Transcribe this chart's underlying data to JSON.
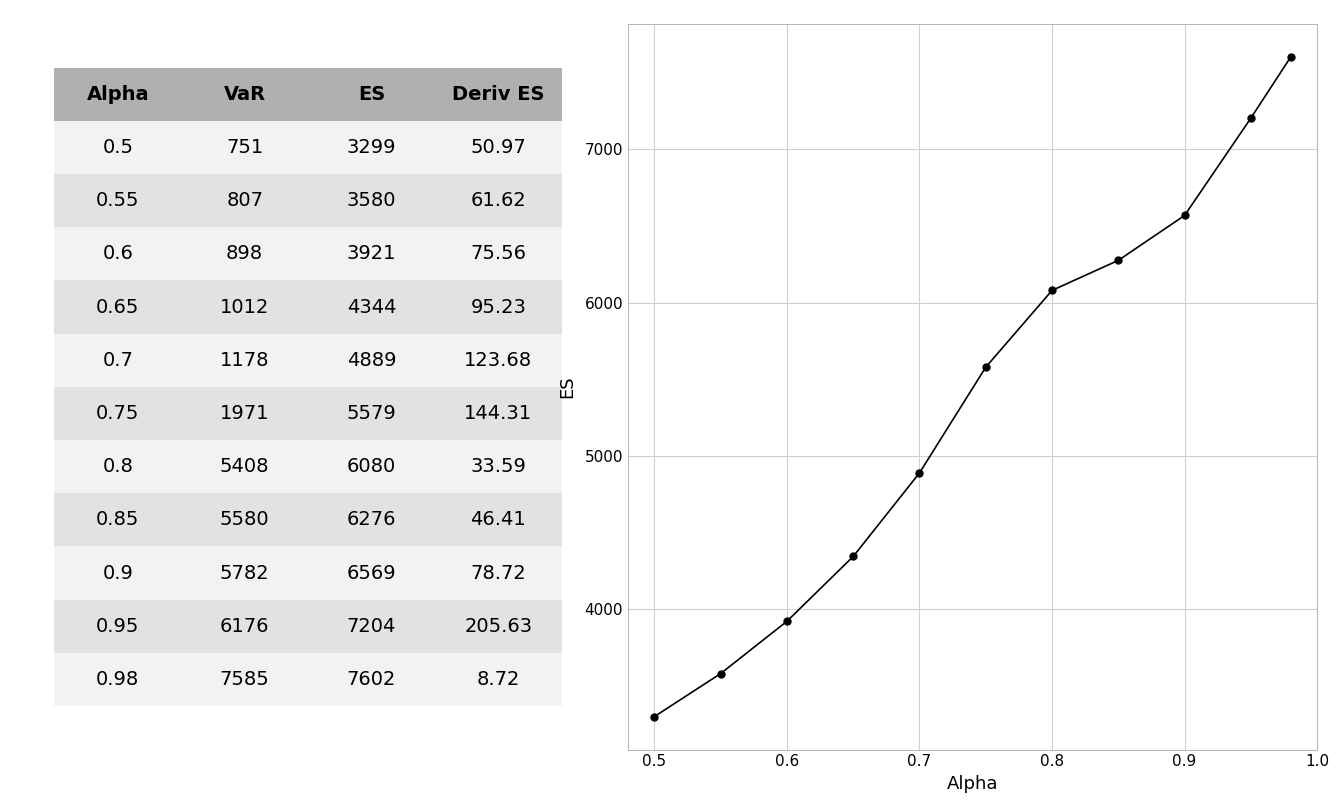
{
  "alpha": [
    0.5,
    0.55,
    0.6,
    0.65,
    0.7,
    0.75,
    0.8,
    0.85,
    0.9,
    0.95,
    0.98
  ],
  "VaR": [
    751,
    807,
    898,
    1012,
    1178,
    1971,
    5408,
    5580,
    5782,
    6176,
    7585
  ],
  "ES": [
    3299,
    3580,
    3921,
    4344,
    4889,
    5579,
    6080,
    6276,
    6569,
    7204,
    7602
  ],
  "DerivES": [
    50.97,
    61.62,
    75.56,
    95.23,
    123.68,
    144.31,
    33.59,
    46.41,
    78.72,
    205.63,
    8.72
  ],
  "col_headers": [
    "Alpha",
    "VaR",
    "ES",
    "Deriv ES"
  ],
  "plot_xlabel": "Alpha",
  "plot_ylabel": "ES",
  "line_color": "#000000",
  "marker": "o",
  "marker_size": 5,
  "background_color": "#ffffff",
  "grid_color": "#d0d0d0",
  "table_header_bg": "#b0b0b0",
  "table_odd_row_bg": "#f2f2f2",
  "table_even_row_bg": "#e2e2e2",
  "ax_tick_color": "#000000",
  "xlim": [
    0.48,
    1.0
  ],
  "xticks": [
    0.5,
    0.6,
    0.7,
    0.8,
    0.9,
    1.0
  ],
  "yticks": [
    4000,
    5000,
    6000,
    7000
  ],
  "plot_bg_color": "#ffffff",
  "font_size_table": 14,
  "font_size_axis_label": 13,
  "font_size_tick": 11
}
